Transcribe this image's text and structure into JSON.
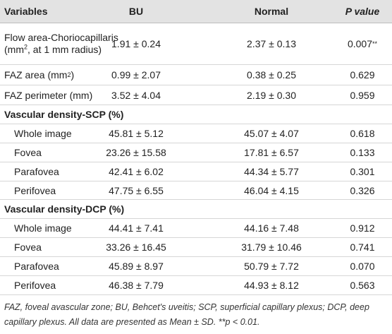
{
  "table": {
    "header": [
      "Variables",
      "BU",
      "Normal",
      "P value"
    ],
    "flow_area": {
      "name": "Flow area-Choriocapillaris",
      "unit_open": "(mm",
      "unit_sup": "2",
      "unit_close": ", at 1 mm radius)",
      "bu": "1.91 ± 0.24",
      "normal": "2.37 ± 0.13",
      "p": "0.007",
      "p_mark": "**"
    },
    "faz_area": {
      "name": "FAZ area (mm",
      "unit_sup": "2",
      "unit_close": ")",
      "bu": "0.99 ± 2.07",
      "normal": "0.38 ± 0.25",
      "p": "0.629"
    },
    "faz_perimeter": {
      "name": "FAZ perimeter (mm)",
      "bu": "3.52 ± 4.04",
      "normal": "2.19 ± 0.30",
      "p": "0.959"
    },
    "sections": [
      {
        "title": "Vascular density-SCP (%)",
        "rows": [
          [
            "Whole image",
            "45.81 ± 5.12",
            "45.07 ± 4.07",
            "0.618"
          ],
          [
            "Fovea",
            "23.26 ± 15.58",
            "17.81 ± 6.57",
            "0.133"
          ],
          [
            "Parafovea",
            "42.41 ± 6.02",
            "44.34 ± 5.77",
            "0.301"
          ],
          [
            "Perifovea",
            "47.75 ± 6.55",
            "46.04 ± 4.15",
            "0.326"
          ]
        ]
      },
      {
        "title": "Vascular density-DCP (%)",
        "rows": [
          [
            "Whole image",
            "44.41 ± 7.41",
            "44.16 ± 7.48",
            "0.912"
          ],
          [
            "Fovea",
            "33.26 ± 16.45",
            "31.79 ± 10.46",
            "0.741"
          ],
          [
            "Parafovea",
            "45.89 ± 8.97",
            "50.79 ± 7.72",
            "0.070"
          ],
          [
            "Perifovea",
            "46.38 ± 7.79",
            "44.93 ± 8.12",
            "0.563"
          ]
        ]
      }
    ],
    "footnote": "FAZ, foveal avascular zone; BU, Behcet's uveitis; SCP, superficial capillary plexus; DCP, deep capillary plexus. All data are presented as Mean ± SD. **p < 0.01."
  }
}
